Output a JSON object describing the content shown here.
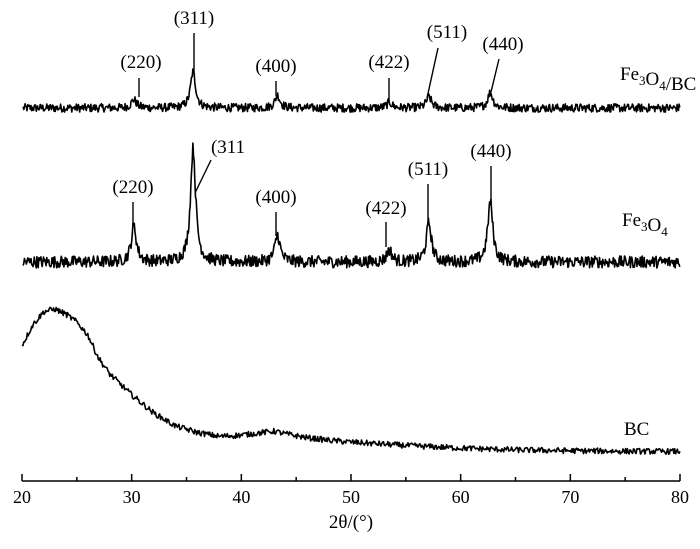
{
  "chart_data": {
    "type": "line",
    "title": "",
    "xlabel": "2θ/(°)",
    "ylabel": "",
    "xlim": [
      20,
      80
    ],
    "x_ticks": [
      "20",
      "30",
      "40",
      "50",
      "60",
      "70",
      "80"
    ],
    "grid": false,
    "legend": "none",
    "series": [
      {
        "name": "Fe3O4/BC",
        "label": "Fe₃O₄/BC",
        "color": "#000000",
        "baseline": 0.0,
        "noise": 0.15,
        "peaks": [
          {
            "x": 30.2,
            "h": 0.3
          },
          {
            "x": 35.6,
            "h": 1.3
          },
          {
            "x": 43.3,
            "h": 0.45
          },
          {
            "x": 53.5,
            "h": 0.2
          },
          {
            "x": 57.1,
            "h": 0.4
          },
          {
            "x": 62.7,
            "h": 0.55
          }
        ]
      },
      {
        "name": "Fe3O4",
        "label": "Fe₃O₄",
        "color": "#000000",
        "baseline": 0.0,
        "noise": 0.2,
        "peaks": [
          {
            "x": 30.2,
            "h": 1.2
          },
          {
            "x": 35.6,
            "h": 3.8
          },
          {
            "x": 43.3,
            "h": 0.9
          },
          {
            "x": 53.5,
            "h": 0.4
          },
          {
            "x": 57.1,
            "h": 1.3
          },
          {
            "x": 62.7,
            "h": 2.0
          }
        ]
      },
      {
        "name": "BC",
        "label": "BC",
        "color": "#000000",
        "points": [
          [
            20,
            4.1
          ],
          [
            21,
            4.9
          ],
          [
            22,
            5.4
          ],
          [
            23,
            5.5
          ],
          [
            24,
            5.3
          ],
          [
            25,
            5.0
          ],
          [
            26,
            4.5
          ],
          [
            27,
            3.6
          ],
          [
            28,
            3.0
          ],
          [
            30,
            2.2
          ],
          [
            32,
            1.5
          ],
          [
            34,
            1.0
          ],
          [
            36,
            0.75
          ],
          [
            38,
            0.6
          ],
          [
            40,
            0.65
          ],
          [
            42,
            0.75
          ],
          [
            43,
            0.8
          ],
          [
            44,
            0.7
          ],
          [
            46,
            0.55
          ],
          [
            48,
            0.45
          ],
          [
            50,
            0.38
          ],
          [
            55,
            0.25
          ],
          [
            60,
            0.15
          ],
          [
            65,
            0.08
          ],
          [
            70,
            0.05
          ],
          [
            75,
            0.03
          ],
          [
            80,
            0.02
          ]
        ]
      }
    ],
    "annotations": {
      "Fe3O4/BC": [
        {
          "text": "(220)",
          "x": 30.2
        },
        {
          "text": "(311)",
          "x": 35.6
        },
        {
          "text": "(400)",
          "x": 43.3
        },
        {
          "text": "(422)",
          "x": 53.5
        },
        {
          "text": "(511)",
          "x": 57.1
        },
        {
          "text": "(440)",
          "x": 62.7
        }
      ],
      "Fe3O4": [
        {
          "text": "(220)",
          "x": 30.2
        },
        {
          "text": "(311",
          "x": 35.6
        },
        {
          "text": "(400)",
          "x": 43.3
        },
        {
          "text": "(422)",
          "x": 53.5
        },
        {
          "text": "(511)",
          "x": 57.1
        },
        {
          "text": "(440)",
          "x": 62.7
        }
      ]
    }
  }
}
